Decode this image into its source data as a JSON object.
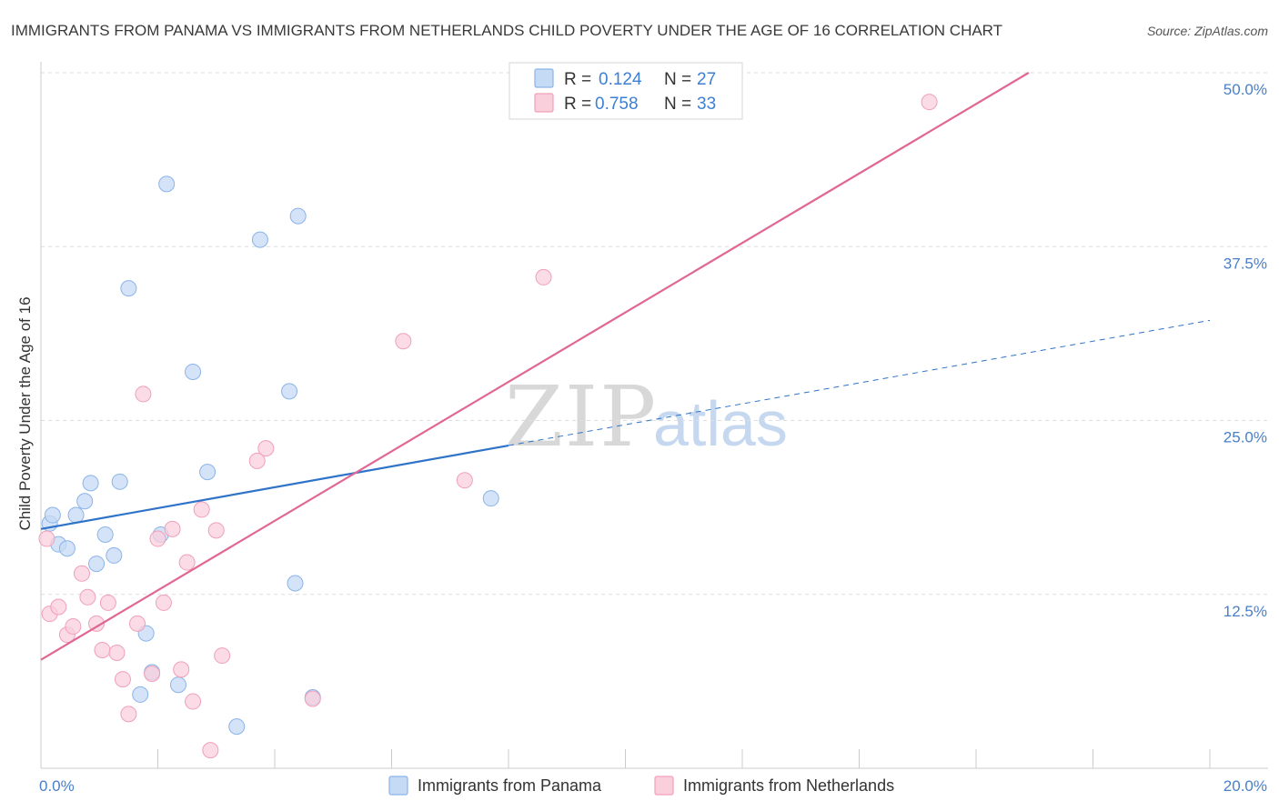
{
  "chart_data": {
    "type": "scatter",
    "title": "IMMIGRANTS FROM PANAMA VS IMMIGRANTS FROM NETHERLANDS CHILD POVERTY UNDER THE AGE OF 16 CORRELATION CHART",
    "source": "Source: ZipAtlas.com",
    "xlabel": "",
    "ylabel": "Child Poverty Under the Age of 16",
    "xlim": [
      0,
      20
    ],
    "ylim": [
      0,
      50
    ],
    "x_tick_labels": [
      {
        "value": 0,
        "label": "0.0%"
      },
      {
        "value": 20,
        "label": "20.0%"
      }
    ],
    "y_tick_labels": [
      {
        "value": 12.5,
        "label": "12.5%"
      },
      {
        "value": 25,
        "label": "25.0%"
      },
      {
        "value": 37.5,
        "label": "37.5%"
      },
      {
        "value": 50,
        "label": "50.0%"
      }
    ],
    "watermark": {
      "zip": "ZIP",
      "atlas": "atlas"
    },
    "stats_legend": [
      {
        "r_label": "R =",
        "r_value": "0.124",
        "n_label": "N =",
        "n_value": "27"
      },
      {
        "r_label": "R =",
        "r_value": "0.758",
        "n_label": "N =",
        "n_value": "33"
      }
    ],
    "series": [
      {
        "name": "Immigrants from Panama",
        "color": "#8ab4e8",
        "fill": "#c5daf5",
        "line_color": "#2f73c9",
        "trend": {
          "x0": 0,
          "y0": 17.2,
          "x1": 8,
          "y1": 23.2,
          "dash_x1": 20,
          "dash_y1": 32.2
        },
        "points": [
          [
            0.15,
            17.6
          ],
          [
            0.2,
            18.2
          ],
          [
            0.3,
            16.1
          ],
          [
            0.45,
            15.8
          ],
          [
            0.6,
            18.2
          ],
          [
            0.75,
            19.2
          ],
          [
            0.85,
            20.5
          ],
          [
            0.95,
            14.7
          ],
          [
            1.1,
            16.8
          ],
          [
            1.25,
            15.3
          ],
          [
            1.35,
            20.6
          ],
          [
            1.5,
            34.5
          ],
          [
            1.7,
            5.3
          ],
          [
            1.8,
            9.7
          ],
          [
            1.9,
            6.9
          ],
          [
            2.05,
            16.8
          ],
          [
            2.15,
            42.0
          ],
          [
            2.35,
            6.0
          ],
          [
            2.6,
            28.5
          ],
          [
            2.85,
            21.3
          ],
          [
            3.35,
            3.0
          ],
          [
            3.75,
            38.0
          ],
          [
            4.25,
            27.1
          ],
          [
            4.35,
            13.3
          ],
          [
            4.4,
            39.7
          ],
          [
            4.65,
            5.1
          ],
          [
            7.7,
            19.4
          ]
        ]
      },
      {
        "name": "Immigrants from Netherlands",
        "color": "#f0a0b8",
        "fill": "#f9cfdc",
        "line_color": "#e06694",
        "trend": {
          "x0": 0,
          "y0": 7.8,
          "x1": 16.9,
          "y1": 50.0
        },
        "points": [
          [
            0.1,
            16.5
          ],
          [
            0.15,
            11.1
          ],
          [
            0.3,
            11.6
          ],
          [
            0.45,
            9.6
          ],
          [
            0.55,
            10.2
          ],
          [
            0.7,
            14.0
          ],
          [
            0.8,
            12.3
          ],
          [
            0.95,
            10.4
          ],
          [
            1.05,
            8.5
          ],
          [
            1.15,
            11.9
          ],
          [
            1.3,
            8.3
          ],
          [
            1.4,
            6.4
          ],
          [
            1.5,
            3.9
          ],
          [
            1.65,
            10.4
          ],
          [
            1.75,
            26.9
          ],
          [
            1.9,
            6.8
          ],
          [
            2.0,
            16.5
          ],
          [
            2.1,
            11.9
          ],
          [
            2.25,
            17.2
          ],
          [
            2.4,
            7.1
          ],
          [
            2.5,
            14.8
          ],
          [
            2.6,
            4.8
          ],
          [
            2.75,
            18.6
          ],
          [
            2.9,
            1.3
          ],
          [
            3.0,
            17.1
          ],
          [
            3.1,
            8.1
          ],
          [
            3.7,
            22.1
          ],
          [
            3.85,
            23.0
          ],
          [
            4.65,
            5.0
          ],
          [
            6.2,
            30.7
          ],
          [
            7.25,
            20.7
          ],
          [
            8.6,
            35.3
          ],
          [
            15.2,
            47.9
          ]
        ]
      }
    ],
    "bottom_legend": [
      "Immigrants from Panama",
      "Immigrants from Netherlands"
    ]
  }
}
